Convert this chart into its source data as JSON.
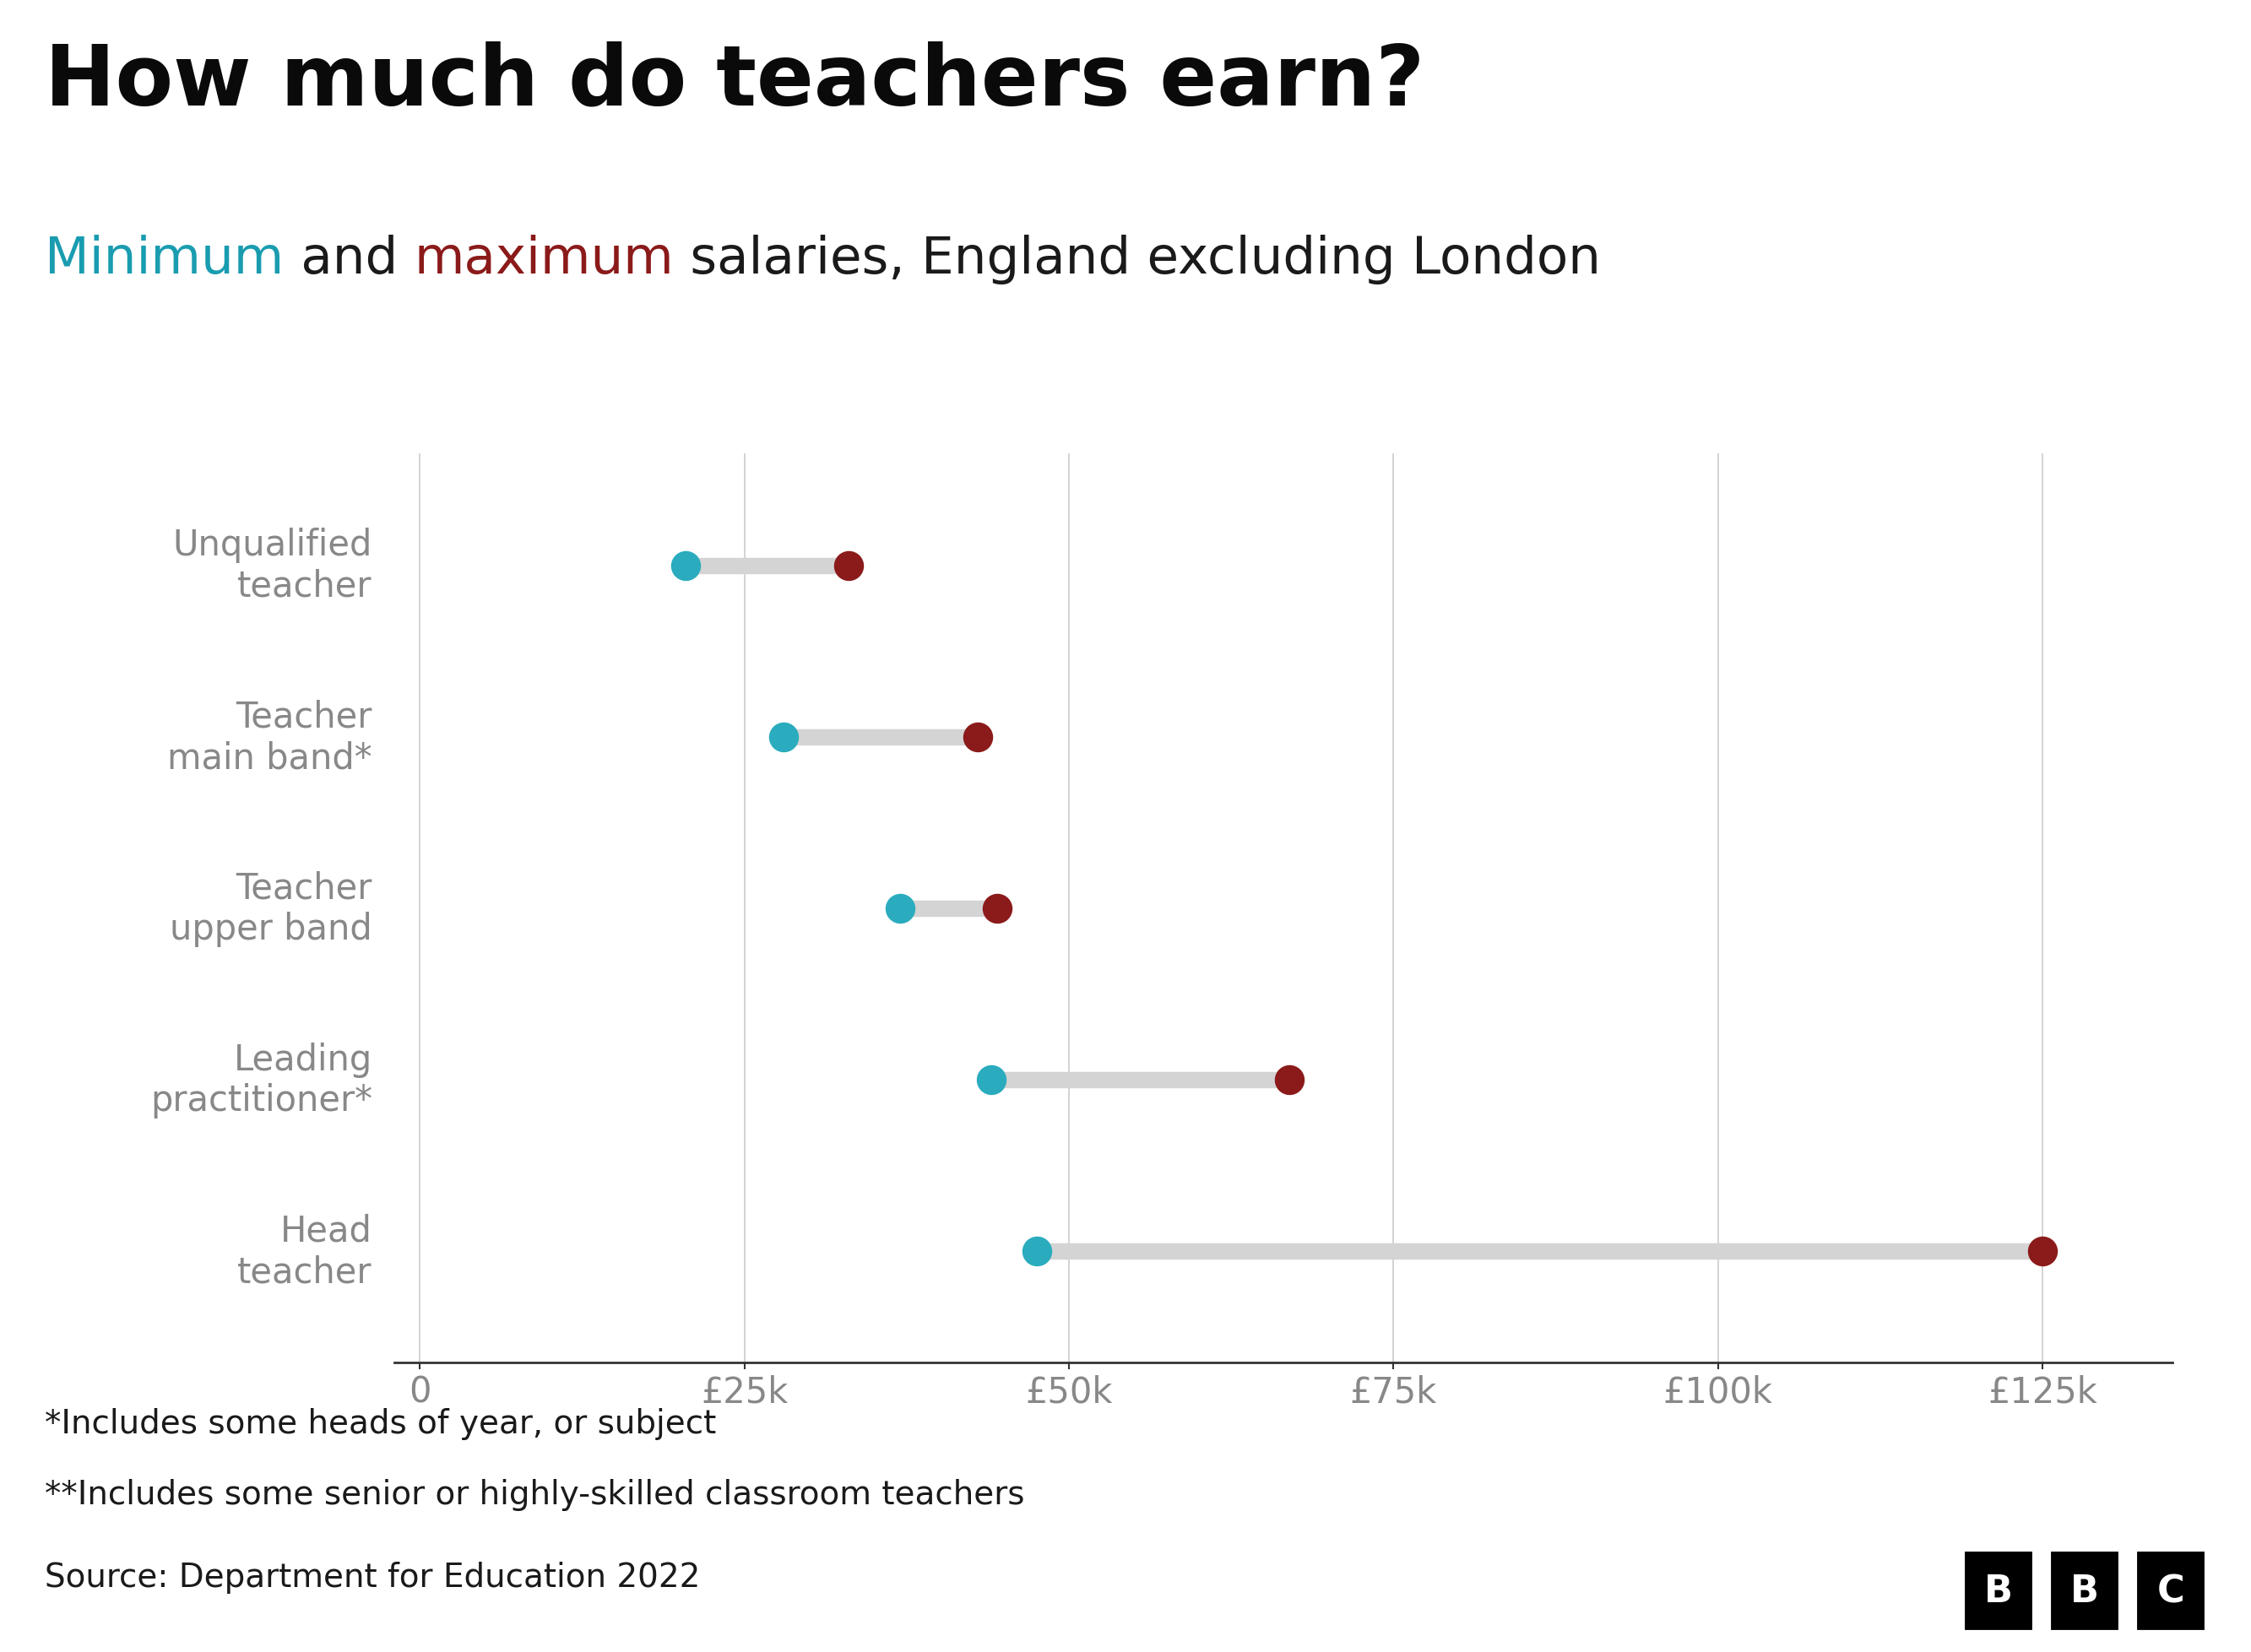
{
  "title": "How much do teachers earn?",
  "subtitle_parts": [
    {
      "text": "Minimum",
      "color": "#1a9cb0"
    },
    {
      "text": " and ",
      "color": "#1a1a1a"
    },
    {
      "text": "maximum",
      "color": "#8b1a1a"
    },
    {
      "text": " salaries, England excluding London",
      "color": "#1a1a1a"
    }
  ],
  "categories": [
    "Unqualified\nteacher",
    "Teacher\nmain band*",
    "Teacher\nupper band",
    "Leading\npractitioner*",
    "Head\nteacher"
  ],
  "min_values": [
    20500,
    28000,
    37000,
    44000,
    47500
  ],
  "max_values": [
    33000,
    43000,
    44500,
    67000,
    125000
  ],
  "min_color": "#2aacbe",
  "max_color": "#8b1a1a",
  "connector_color": "#d4d4d4",
  "xticks": [
    0,
    25000,
    50000,
    75000,
    100000,
    125000
  ],
  "xtick_labels": [
    "0",
    "£25k",
    "£50k",
    "£75k",
    "£100k",
    "£125k"
  ],
  "xlim": [
    -2000,
    135000
  ],
  "footnote1": "*Includes some heads of year, or subject",
  "footnote2": "**Includes some senior or highly-skilled classroom teachers",
  "source": "Source: Department for Education 2022",
  "background_color": "#ffffff",
  "grid_color": "#cccccc",
  "dot_size": 600,
  "connector_linewidth": 14,
  "label_color": "#888888",
  "title_fontsize": 72,
  "subtitle_fontsize": 44,
  "tick_fontsize": 30,
  "footnote_fontsize": 28,
  "source_fontsize": 28
}
